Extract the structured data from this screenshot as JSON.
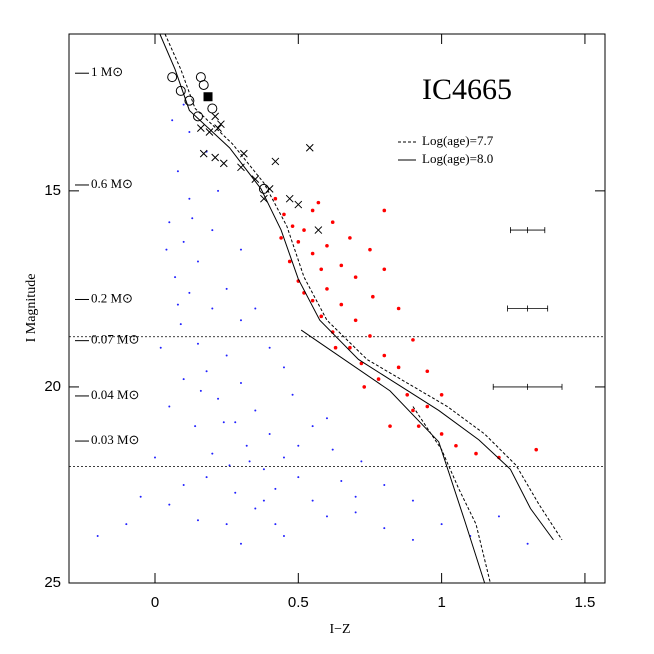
{
  "chart_data": {
    "type": "scatter",
    "title": "IC4665",
    "x_label": "I−Z",
    "y_label": "I Magnitude",
    "xlim": [
      -0.3,
      1.57
    ],
    "ylim": [
      11,
      25
    ],
    "invert_y": true,
    "xticks": [
      0,
      0.5,
      1,
      1.5
    ],
    "yticks": [
      15,
      20,
      25
    ],
    "legend": "upper right",
    "mass_labels": [
      {
        "label": "1 M⊙",
        "mag": 12.0
      },
      {
        "label": "0.6 M⊙",
        "mag": 14.85
      },
      {
        "label": "0.2 M⊙",
        "mag": 17.77
      },
      {
        "label": "0.07 M⊙",
        "mag": 18.82
      },
      {
        "label": "0.04 M⊙",
        "mag": 20.23
      },
      {
        "label": "0.03 M⊙",
        "mag": 21.38
      }
    ],
    "hlines": [
      18.72,
      22.03
    ],
    "error_bars": {
      "x": [
        1.3,
        1.3,
        1.3
      ],
      "y": [
        16.0,
        18.0,
        20.0
      ],
      "xerr": [
        0.06,
        0.07,
        0.12
      ]
    },
    "series": [
      {
        "marker": "dot",
        "color": "#2020ff",
        "x": [
          0.08,
          0.12,
          0.05,
          0.1,
          0.15,
          0.07,
          0.12,
          0.2,
          0.09,
          0.15,
          0.25,
          0.18,
          0.3,
          0.22,
          0.35,
          0.28,
          0.4,
          0.32,
          0.45,
          0.38,
          0.5,
          0.42,
          0.55,
          0.35,
          0.6,
          0.25,
          0.7,
          0.15,
          0.8,
          0.05,
          -0.1,
          -0.2,
          0.9,
          1.0,
          0.45,
          0.3,
          0.65,
          0.72,
          0.55,
          0.48,
          0.6,
          0.12,
          0.18,
          0.06,
          0.1,
          0.22,
          0.04,
          0.2,
          0.25,
          0.3,
          0.02,
          0.1,
          0.05,
          0.14,
          0.2,
          0.26,
          0.1,
          0.0,
          -0.05,
          0.4,
          0.35,
          0.45,
          0.5,
          0.62,
          0.7,
          0.8,
          0.9,
          1.1,
          1.2,
          1.3,
          0.38,
          0.42,
          0.28,
          0.33,
          0.18,
          0.24,
          0.16,
          0.08,
          0.13,
          0.3
        ],
        "y": [
          14.5,
          15.2,
          15.8,
          16.3,
          16.8,
          17.2,
          17.6,
          18.0,
          18.4,
          18.9,
          19.2,
          19.6,
          19.9,
          20.3,
          20.6,
          20.9,
          21.2,
          21.5,
          21.8,
          22.1,
          22.3,
          22.6,
          22.9,
          23.1,
          23.3,
          23.5,
          23.2,
          23.4,
          23.6,
          23.0,
          23.5,
          23.8,
          23.9,
          23.5,
          23.8,
          24.0,
          22.4,
          21.9,
          21.0,
          20.2,
          20.8,
          13.5,
          14.0,
          13.2,
          12.8,
          15.0,
          16.5,
          16.0,
          17.5,
          18.3,
          19.0,
          19.8,
          20.5,
          21.0,
          21.7,
          22.0,
          22.5,
          21.8,
          22.8,
          19.0,
          18.0,
          19.5,
          21.5,
          21.6,
          22.8,
          22.5,
          22.9,
          23.8,
          23.3,
          24.0,
          22.9,
          23.5,
          22.7,
          21.9,
          22.3,
          20.9,
          20.1,
          17.9,
          15.7,
          16.5
        ]
      },
      {
        "marker": "dot-large",
        "color": "#ff0000",
        "x": [
          0.42,
          0.45,
          0.48,
          0.5,
          0.52,
          0.55,
          0.47,
          0.58,
          0.5,
          0.6,
          0.55,
          0.65,
          0.58,
          0.7,
          0.62,
          0.75,
          0.68,
          0.8,
          0.72,
          0.85,
          0.78,
          0.88,
          0.9,
          0.95,
          0.92,
          1.0,
          1.05,
          1.12,
          1.2,
          1.33,
          0.6,
          0.65,
          0.7,
          0.76,
          0.55,
          0.62,
          0.68,
          0.75,
          0.8,
          0.85,
          0.9,
          0.95,
          1.0,
          0.44,
          0.52,
          0.63,
          0.73,
          0.82,
          0.8,
          0.57
        ],
        "y": [
          15.2,
          15.6,
          15.9,
          16.3,
          16.0,
          16.6,
          16.8,
          17.0,
          17.3,
          17.5,
          17.8,
          17.9,
          18.2,
          18.3,
          18.6,
          18.7,
          19.0,
          19.2,
          19.4,
          19.5,
          19.8,
          20.2,
          20.6,
          20.5,
          21.0,
          21.2,
          21.5,
          21.7,
          21.8,
          21.6,
          16.4,
          16.9,
          17.2,
          17.7,
          15.5,
          15.8,
          16.2,
          16.5,
          17.0,
          18.0,
          18.8,
          19.6,
          20.2,
          16.2,
          17.6,
          19.0,
          20.0,
          21.0,
          15.5,
          15.3
        ]
      },
      {
        "marker": "cross",
        "color": "#000000",
        "x": [
          0.16,
          0.19,
          0.22,
          0.17,
          0.21,
          0.24,
          0.3,
          0.31,
          0.42,
          0.54,
          0.35,
          0.4,
          0.5,
          0.57,
          0.47,
          0.38,
          0.21,
          0.23
        ],
        "y": [
          13.4,
          13.5,
          13.4,
          14.05,
          14.15,
          14.3,
          14.4,
          14.05,
          14.25,
          13.9,
          14.7,
          14.95,
          15.35,
          16.0,
          15.2,
          15.2,
          13.1,
          13.3
        ]
      },
      {
        "marker": "circle",
        "color": "#000000",
        "x": [
          0.06,
          0.09,
          0.12,
          0.15,
          0.16,
          0.17,
          0.2,
          0.38
        ],
        "y": [
          12.1,
          12.45,
          12.7,
          13.1,
          12.1,
          12.3,
          12.9,
          14.95
        ]
      },
      {
        "marker": "square",
        "color": "#000000",
        "x": [
          0.185
        ],
        "y": [
          12.6
        ]
      },
      {
        "name": "Log(age)=7.7",
        "marker": "line",
        "dash": true,
        "color": "#000000",
        "x": [
          0.035,
          0.09,
          0.14,
          0.27,
          0.38,
          0.46,
          0.52,
          0.6,
          0.74,
          0.88,
          1.02,
          1.15,
          1.26,
          1.34,
          1.42,
          null,
          0.9,
          1.0,
          1.06,
          1.12,
          1.17
        ],
        "y": [
          11,
          11.9,
          12.9,
          13.8,
          14.8,
          15.9,
          17.2,
          18.3,
          19.3,
          19.9,
          20.5,
          21.2,
          22.0,
          23.0,
          23.9,
          null,
          20.5,
          21.6,
          22.6,
          23.5,
          25.0
        ]
      },
      {
        "name": "Log(age)=8.0",
        "marker": "line",
        "dash": false,
        "color": "#000000",
        "x": [
          0.017,
          0.07,
          0.12,
          0.26,
          0.37,
          0.44,
          0.5,
          0.575,
          0.71,
          0.85,
          0.99,
          1.13,
          1.24,
          1.31,
          1.39,
          null,
          0.51,
          0.82,
          0.99,
          1.08,
          1.15
        ],
        "y": [
          11,
          11.9,
          12.95,
          13.9,
          14.95,
          16.0,
          17.25,
          18.3,
          19.3,
          19.95,
          20.6,
          21.35,
          22.1,
          23.1,
          23.9,
          null,
          18.55,
          20.1,
          21.4,
          23.4,
          25.0
        ]
      }
    ]
  }
}
